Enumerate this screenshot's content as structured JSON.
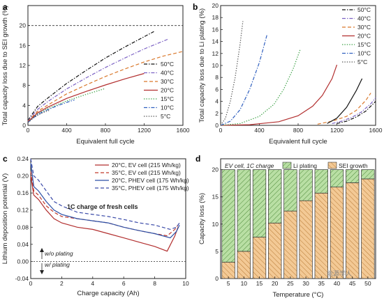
{
  "chart_data": [
    {
      "panel": "a",
      "type": "line",
      "xlabel": "Equivalent full cycle",
      "ylabel": "Total capacity loss due to SEI growth (%)",
      "xlim": [
        0,
        1600
      ],
      "ylim": [
        0,
        24
      ],
      "xticks": [
        0,
        400,
        800,
        1200,
        1600
      ],
      "yticks": [
        0,
        4,
        8,
        12,
        16,
        20
      ],
      "reference_line": 20,
      "legend_position": "right",
      "series": [
        {
          "name": "50°C",
          "color": "#111111",
          "dash": "dashdot",
          "x": [
            0,
            100,
            200,
            400,
            600,
            800,
            1000,
            1300
          ],
          "y": [
            1.0,
            3.8,
            5.4,
            8.4,
            11.0,
            13.5,
            15.7,
            18.8
          ]
        },
        {
          "name": "40°C",
          "color": "#7b61c4",
          "dash": "dashdot",
          "x": [
            0,
            100,
            200,
            400,
            600,
            800,
            1000,
            1200,
            1450
          ],
          "y": [
            0.9,
            3.2,
            4.7,
            7.3,
            9.5,
            11.6,
            13.5,
            15.3,
            17.3
          ]
        },
        {
          "name": "30°C",
          "color": "#d9772a",
          "dash": "dash",
          "x": [
            0,
            100,
            200,
            400,
            600,
            800,
            1000,
            1200,
            1400,
            1600
          ],
          "y": [
            0.8,
            2.8,
            4.0,
            6.3,
            8.1,
            9.8,
            11.3,
            12.7,
            13.9,
            14.8
          ]
        },
        {
          "name": "20°C",
          "color": "#b22e2e",
          "dash": "solid",
          "x": [
            0,
            100,
            200,
            400,
            600,
            800,
            1000,
            1200
          ],
          "y": [
            0.7,
            2.5,
            3.6,
            5.4,
            6.8,
            8.1,
            9.3,
            10.4
          ]
        },
        {
          "name": "15°C",
          "color": "#3aa043",
          "dash": "dot",
          "x": [
            0,
            100,
            200,
            400,
            600,
            800
          ],
          "y": [
            0.6,
            2.3,
            3.3,
            4.9,
            6.2,
            7.4
          ]
        },
        {
          "name": "10°C",
          "color": "#2f5fbf",
          "dash": "dashdot",
          "x": [
            0,
            100,
            200,
            300,
            400,
            480
          ],
          "y": [
            0.6,
            2.2,
            3.1,
            3.9,
            4.6,
            5.1
          ]
        },
        {
          "name": "5°C",
          "color": "#555555",
          "dash": "dot",
          "x": [
            0,
            50,
            100,
            150,
            220
          ],
          "y": [
            0.5,
            1.4,
            2.0,
            2.5,
            3.0
          ]
        }
      ]
    },
    {
      "panel": "b",
      "type": "line",
      "xlabel": "Equivalent full cycle",
      "ylabel": "Total capacity loss due to Li plating (%)",
      "xlim": [
        0,
        1600
      ],
      "ylim": [
        0,
        20
      ],
      "xticks": [
        0,
        400,
        800,
        1200,
        1600
      ],
      "yticks": [
        0,
        2,
        4,
        6,
        8,
        10,
        12,
        14,
        16,
        18,
        20
      ],
      "legend_position": "top-right",
      "series": [
        {
          "name": "50°C",
          "color": "#111111",
          "dash": "dashdot",
          "x": [
            1200,
            1300,
            1400,
            1500,
            1600
          ],
          "y": [
            0.3,
            0.7,
            1.4,
            2.4,
            4.0
          ]
        },
        {
          "name": "40°C",
          "color": "#7b61c4",
          "dash": "dashdot",
          "x": [
            1150,
            1250,
            1350,
            1450,
            1550,
            1600
          ],
          "y": [
            0.3,
            0.7,
            1.3,
            2.2,
            3.6,
            4.6
          ]
        },
        {
          "name": "30°C",
          "color": "#d9772a",
          "dash": "dash",
          "x": [
            1000,
            1150,
            1300,
            1400,
            1500,
            1550
          ],
          "y": [
            0.2,
            0.7,
            1.5,
            2.5,
            4.2,
            5.4
          ]
        },
        {
          "name": "20°C",
          "color": "#b22e2e",
          "dash": "solid",
          "x": [
            0,
            300,
            600,
            800,
            950,
            1050,
            1150,
            1200
          ],
          "y": [
            0.0,
            0.1,
            0.6,
            1.6,
            3.2,
            5.0,
            7.8,
            10.1
          ]
        },
        {
          "name": "15°C",
          "color": "#3aa043",
          "dash": "dot",
          "x": [
            0,
            200,
            400,
            550,
            650,
            750,
            820
          ],
          "y": [
            0.0,
            0.3,
            1.5,
            3.5,
            6.0,
            9.5,
            12.6
          ]
        },
        {
          "name": "10°C",
          "color": "#2f5fbf",
          "dash": "dashdot",
          "x": [
            0,
            100,
            200,
            300,
            400,
            480
          ],
          "y": [
            0.0,
            0.7,
            2.6,
            6.0,
            10.5,
            15.2
          ]
        },
        {
          "name": "5°C",
          "color": "#555555",
          "dash": "dot",
          "x": [
            0,
            50,
            100,
            150,
            200,
            230
          ],
          "y": [
            0.0,
            1.2,
            4.0,
            8.0,
            13.5,
            17.4
          ]
        },
        {
          "name": "",
          "color": "#111111",
          "dash": "solid",
          "x": [
            1100,
            1200,
            1300,
            1400,
            1460
          ],
          "y": [
            0.3,
            1.2,
            3.0,
            5.8,
            7.8
          ]
        }
      ]
    },
    {
      "panel": "c",
      "type": "line",
      "xlabel": "Charge capacity (Ah)",
      "ylabel": "Lithium deposition potential (V)",
      "xlim": [
        0,
        10
      ],
      "ylim": [
        -0.04,
        0.24
      ],
      "xticks": [
        0,
        2,
        4,
        6,
        8,
        10
      ],
      "yticks": [
        -0.04,
        0.0,
        0.04,
        0.08,
        0.12,
        0.16,
        0.2,
        0.24
      ],
      "zero_line": 0,
      "annotation": "1C charge of fresh cells",
      "above_label": "w/o plating",
      "below_label": "w/ plating",
      "legend_position": "top-right",
      "series": [
        {
          "name": "20°C, EV cell (215 Wh/kg)",
          "color": "#b22e2e",
          "dash": "solid",
          "x": [
            0,
            0.2,
            0.5,
            1.0,
            1.5,
            2.0,
            3.0,
            4.0,
            5.0,
            6.0,
            7.0,
            8.0,
            8.8,
            9.3,
            9.5
          ],
          "y": [
            0.2,
            0.155,
            0.145,
            0.12,
            0.1,
            0.09,
            0.08,
            0.075,
            0.065,
            0.055,
            0.045,
            0.035,
            0.024,
            0.06,
            0.08
          ]
        },
        {
          "name": "35°C, EV cell (215 Wh/kg)",
          "color": "#c0392b",
          "dash": "dash",
          "x": [
            0,
            0.2,
            0.5,
            1.0,
            1.5,
            2.0,
            3.0,
            4.0,
            5.0,
            6.0,
            7.0,
            8.0,
            8.8,
            9.3,
            9.5
          ],
          "y": [
            0.21,
            0.165,
            0.155,
            0.13,
            0.115,
            0.105,
            0.1,
            0.095,
            0.09,
            0.08,
            0.072,
            0.065,
            0.06,
            0.075,
            0.085
          ]
        },
        {
          "name": "20°C, PHEV cell (175 Wh/kg)",
          "color": "#2b4fa6",
          "dash": "solid",
          "x": [
            0,
            0.2,
            0.5,
            1.0,
            1.5,
            2.0,
            3.0,
            4.0,
            5.0,
            6.0,
            7.0,
            8.0,
            9.0,
            9.4,
            9.6
          ],
          "y": [
            0.23,
            0.175,
            0.165,
            0.14,
            0.12,
            0.11,
            0.1,
            0.095,
            0.09,
            0.08,
            0.072,
            0.065,
            0.055,
            0.07,
            0.085
          ]
        },
        {
          "name": "35°C, PHEV cell (175 Wh/kg)",
          "color": "#3a4aa8",
          "dash": "dash",
          "x": [
            0,
            0.2,
            0.5,
            1.0,
            1.5,
            2.0,
            3.0,
            4.0,
            5.0,
            6.0,
            7.0,
            8.0,
            9.0,
            9.4,
            9.6
          ],
          "y": [
            0.24,
            0.2,
            0.19,
            0.165,
            0.14,
            0.13,
            0.115,
            0.11,
            0.105,
            0.098,
            0.09,
            0.085,
            0.075,
            0.08,
            0.09
          ]
        }
      ]
    },
    {
      "panel": "d",
      "type": "bar",
      "stacked": true,
      "xlabel": "Temperature (°C)",
      "ylabel": "Capacity loss (%)",
      "xlim": [
        2.5,
        52.5
      ],
      "ylim": [
        0,
        22
      ],
      "yticks": [
        0,
        5,
        10,
        15,
        20
      ],
      "annotation": "EV cell, 1C charge",
      "legend_position": "top-right",
      "categories": [
        5,
        10,
        15,
        20,
        25,
        30,
        35,
        40,
        45,
        50
      ],
      "series": [
        {
          "name": "SEI growth",
          "color": "#f3c995",
          "hatch_color": "#b87a35",
          "values": [
            3.0,
            5.0,
            7.6,
            10.2,
            12.4,
            14.3,
            15.7,
            16.8,
            17.6,
            18.3
          ]
        },
        {
          "name": "Li plating",
          "color": "#b9dfa4",
          "hatch_color": "#4e8a3a",
          "values": [
            17.0,
            15.0,
            12.4,
            9.8,
            7.6,
            5.7,
            4.3,
            3.2,
            2.4,
            1.7
          ]
        }
      ]
    }
  ],
  "panels": {
    "a": {
      "letter": "a"
    },
    "b": {
      "letter": "b"
    },
    "c": {
      "letter": "c"
    },
    "d": {
      "letter": "d"
    }
  },
  "watermark": "能源学人"
}
